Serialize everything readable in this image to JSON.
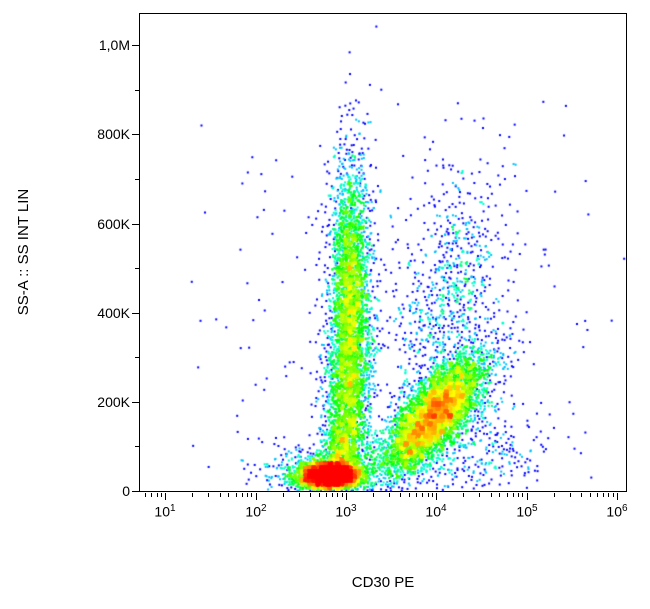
{
  "figure": {
    "background": "#ffffff",
    "axis_color": "#000000"
  },
  "chart_data": {
    "type": "scatter",
    "subtype": "flow-cytometry-density-dot-plot",
    "title": "",
    "xlabel": "CD30 PE",
    "ylabel": "SS-A :: SS INT LIN",
    "x_scale": "log",
    "y_scale": "linear",
    "x_log_range": [
      0.72,
      6.1
    ],
    "y_range": [
      0,
      1070000
    ],
    "x_ticks": [
      {
        "value": 10,
        "base": "10",
        "exp": "1"
      },
      {
        "value": 100,
        "base": "10",
        "exp": "2"
      },
      {
        "value": 1000,
        "base": "10",
        "exp": "3"
      },
      {
        "value": 10000,
        "base": "10",
        "exp": "4"
      },
      {
        "value": 100000,
        "base": "10",
        "exp": "5"
      },
      {
        "value": 1000000,
        "base": "10",
        "exp": "6"
      }
    ],
    "x_minor_mantissas": [
      2,
      3,
      4,
      5,
      6,
      7,
      8,
      9
    ],
    "y_ticks": [
      {
        "value": 0,
        "label": "0"
      },
      {
        "value": 200000,
        "label": "200K"
      },
      {
        "value": 400000,
        "label": "400K"
      },
      {
        "value": 600000,
        "label": "600K"
      },
      {
        "value": 800000,
        "label": "800K"
      },
      {
        "value": 1000000,
        "label": "1,0M"
      }
    ],
    "y_minor_step": 100000,
    "grid": false,
    "legend": null,
    "colormap": [
      "#0000ff",
      "#00ffff",
      "#00ff00",
      "#ffff00",
      "#ff0000"
    ],
    "density_cap": 40,
    "populations": [
      {
        "name": "cd30neg-low-ssc-core",
        "n": 4200,
        "cx_log": 2.82,
        "cy": 35000,
        "sx_log": 0.16,
        "sy": 15000,
        "rho": 0.0
      },
      {
        "name": "cd30neg-low-ssc-halo",
        "n": 500,
        "cx_log": 2.75,
        "cy": 45000,
        "sx_log": 0.38,
        "sy": 28000,
        "rho": 0.1
      },
      {
        "name": "granulocyte-pillar",
        "n": 3000,
        "cx_log": 3.05,
        "cy": 440000,
        "sx_log": 0.11,
        "sy": 150000,
        "rho": 0.0
      },
      {
        "name": "pillar-lower",
        "n": 1400,
        "cx_log": 3.02,
        "cy": 200000,
        "sx_log": 0.13,
        "sy": 95000,
        "rho": 0.0
      },
      {
        "name": "pillar-neck",
        "n": 500,
        "cx_log": 2.96,
        "cy": 95000,
        "sx_log": 0.1,
        "sy": 40000,
        "rho": 0.0
      },
      {
        "name": "cd30pos-diagonal",
        "n": 5000,
        "cx_log": 3.98,
        "cy": 170000,
        "sx_log": 0.28,
        "sy": 65000,
        "rho": 0.72
      },
      {
        "name": "cd30pos-upper-sparse",
        "n": 800,
        "cx_log": 4.15,
        "cy": 430000,
        "sx_log": 0.3,
        "sy": 150000,
        "rho": 0.35
      },
      {
        "name": "right-low-sparse",
        "n": 260,
        "cx_log": 4.55,
        "cy": 90000,
        "sx_log": 0.35,
        "sy": 55000,
        "rho": 0.3
      },
      {
        "name": "background-sparse",
        "n": 350,
        "cx_log": 3.6,
        "cy": 300000,
        "sx_log": 1.05,
        "sy": 260000,
        "rho": 0.0
      }
    ]
  }
}
